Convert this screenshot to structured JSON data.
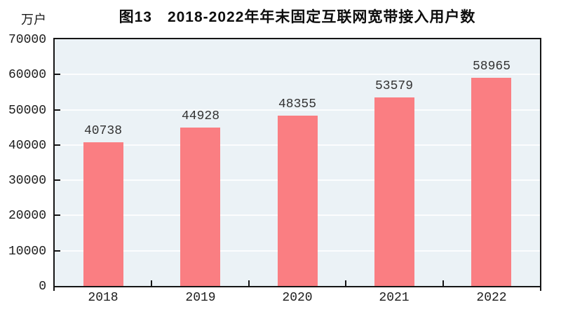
{
  "figure": {
    "title": "图13　2018-2022年年末固定互联网宽带接入用户数",
    "unit_label": "万户"
  },
  "chart_data": {
    "type": "bar",
    "title": "图13　2018-2022年年末固定互联网宽带接入用户数",
    "ylabel": "万户",
    "xlabel": "",
    "categories": [
      "2018",
      "2019",
      "2020",
      "2021",
      "2022"
    ],
    "values": [
      40738,
      44928,
      48355,
      53579,
      58965
    ],
    "bar_value_labels": [
      "40738",
      "44928",
      "48355",
      "53579",
      "58965"
    ],
    "ylim": [
      0,
      70000
    ],
    "ytick_step": 10000,
    "yticks": [
      0,
      10000,
      20000,
      30000,
      40000,
      50000,
      60000,
      70000
    ],
    "grid": "horizontal",
    "gridline_color": "#ffffff",
    "legend_position": "none",
    "bar_color": "#FA7E82",
    "plot_background": "#EBF2F6",
    "axis_color": "#151515",
    "tick_label_color": "#1c1c1c",
    "bar_label_color": "#333333",
    "title_color": "#0d0d0d"
  }
}
